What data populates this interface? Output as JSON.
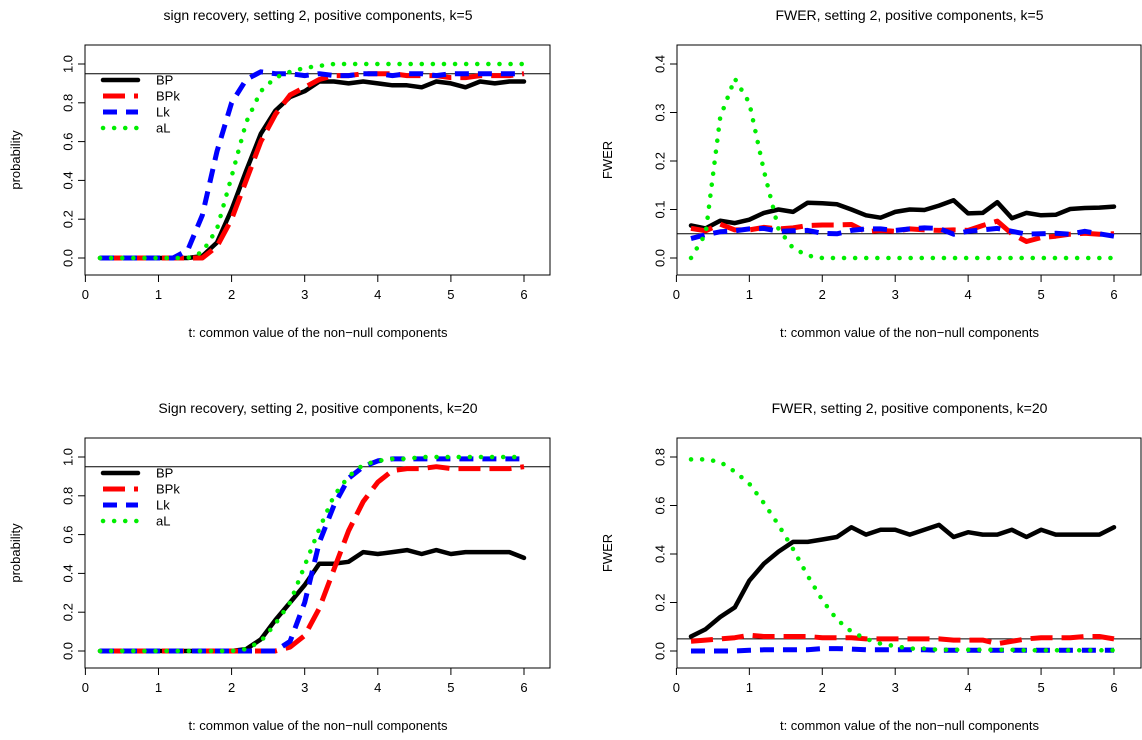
{
  "colors": {
    "BP": "#000000",
    "BPk": "#ff0000",
    "Lk": "#0000ff",
    "aL": "#00ee00"
  },
  "chart_data": [
    {
      "type": "line",
      "title": "sign recovery, setting 2, positive components, k=5",
      "xlabel": "t: common value of the non−null components",
      "ylabel": "probability",
      "xlim": [
        0.2,
        6
      ],
      "ylim": [
        0,
        1
      ],
      "xticks": [
        "0",
        "1",
        "2",
        "3",
        "4",
        "5",
        "6"
      ],
      "yticks": [
        "0.0",
        "0.2",
        "0.4",
        "0.6",
        "0.8",
        "1.0"
      ],
      "hline": 0.95,
      "legend": "top-left",
      "x": [
        0.2,
        0.4,
        0.6,
        0.8,
        1.0,
        1.2,
        1.4,
        1.6,
        1.8,
        2.0,
        2.2,
        2.4,
        2.6,
        2.8,
        3.0,
        3.2,
        3.4,
        3.6,
        3.8,
        4.0,
        4.2,
        4.4,
        4.6,
        4.8,
        5.0,
        5.2,
        5.4,
        5.6,
        5.8,
        6.0
      ],
      "series": [
        {
          "name": "BP",
          "values": [
            0,
            0,
            0,
            0,
            0,
            0,
            0,
            0.01,
            0.08,
            0.25,
            0.45,
            0.64,
            0.76,
            0.83,
            0.86,
            0.91,
            0.91,
            0.9,
            0.91,
            0.9,
            0.89,
            0.89,
            0.88,
            0.91,
            0.9,
            0.88,
            0.91,
            0.9,
            0.91,
            0.91
          ]
        },
        {
          "name": "BPk",
          "values": [
            0,
            0,
            0,
            0,
            0,
            0,
            0,
            0,
            0.06,
            0.2,
            0.4,
            0.6,
            0.74,
            0.84,
            0.88,
            0.92,
            0.94,
            0.94,
            0.95,
            0.95,
            0.95,
            0.94,
            0.94,
            0.94,
            0.93,
            0.93,
            0.94,
            0.94,
            0.94,
            0.95
          ]
        },
        {
          "name": "Lk",
          "values": [
            0,
            0,
            0,
            0,
            0,
            0,
            0.04,
            0.22,
            0.55,
            0.8,
            0.92,
            0.96,
            0.95,
            0.95,
            0.94,
            0.95,
            0.94,
            0.94,
            0.95,
            0.95,
            0.94,
            0.95,
            0.95,
            0.94,
            0.95,
            0.95,
            0.95,
            0.95,
            0.95,
            0.95
          ]
        },
        {
          "name": "aL",
          "values": [
            0,
            0,
            0,
            0,
            0,
            0,
            0,
            0.03,
            0.15,
            0.42,
            0.7,
            0.86,
            0.93,
            0.96,
            0.98,
            0.99,
            1.0,
            1.0,
            1.0,
            1.0,
            1.0,
            1.0,
            1.0,
            1.0,
            1.0,
            1.0,
            1.0,
            1.0,
            1.0,
            1.0
          ]
        }
      ]
    },
    {
      "type": "line",
      "title": "FWER, setting 2, positive components, k=5",
      "xlabel": "t: common value of the non−null components",
      "ylabel": "FWER",
      "xlim": [
        0.2,
        6
      ],
      "ylim": [
        0,
        0.4
      ],
      "xticks": [
        "0",
        "1",
        "2",
        "3",
        "4",
        "5",
        "6"
      ],
      "yticks": [
        "0.0",
        "0.1",
        "0.2",
        "0.3",
        "0.4"
      ],
      "hline": 0.05,
      "legend": "",
      "x": [
        0.2,
        0.4,
        0.6,
        0.8,
        1.0,
        1.2,
        1.4,
        1.6,
        1.8,
        2.0,
        2.2,
        2.4,
        2.6,
        2.8,
        3.0,
        3.2,
        3.4,
        3.6,
        3.8,
        4.0,
        4.2,
        4.4,
        4.6,
        4.8,
        5.0,
        5.2,
        5.4,
        5.6,
        5.8,
        6.0
      ],
      "series": [
        {
          "name": "BP",
          "values": [
            0.067,
            0.061,
            0.077,
            0.072,
            0.079,
            0.093,
            0.1,
            0.095,
            0.114,
            0.113,
            0.111,
            0.1,
            0.088,
            0.083,
            0.095,
            0.1,
            0.099,
            0.108,
            0.119,
            0.092,
            0.093,
            0.115,
            0.082,
            0.093,
            0.088,
            0.089,
            0.101,
            0.103,
            0.104,
            0.106
          ]
        },
        {
          "name": "BPk",
          "values": [
            0.061,
            0.056,
            0.07,
            0.058,
            0.058,
            0.063,
            0.06,
            0.062,
            0.067,
            0.068,
            0.068,
            0.069,
            0.054,
            0.057,
            0.055,
            0.06,
            0.058,
            0.057,
            0.058,
            0.057,
            0.067,
            0.076,
            0.05,
            0.034,
            0.042,
            0.045,
            0.049,
            0.051,
            0.049,
            0.05
          ]
        },
        {
          "name": "Lk",
          "values": [
            0.04,
            0.048,
            0.054,
            0.056,
            0.06,
            0.061,
            0.055,
            0.056,
            0.057,
            0.051,
            0.05,
            0.057,
            0.06,
            0.06,
            0.057,
            0.06,
            0.062,
            0.061,
            0.049,
            0.055,
            0.058,
            0.061,
            0.055,
            0.049,
            0.05,
            0.051,
            0.049,
            0.055,
            0.05,
            0.045
          ]
        },
        {
          "name": "aL",
          "values": [
            0.0,
            0.05,
            0.29,
            0.37,
            0.32,
            0.18,
            0.06,
            0.02,
            0.005,
            0,
            0,
            0,
            0,
            0,
            0,
            0,
            0,
            0,
            0,
            0,
            0,
            0,
            0,
            0,
            0,
            0,
            0,
            0,
            0,
            0
          ]
        }
      ]
    },
    {
      "type": "line",
      "title": "Sign recovery, setting 2, positive components, k=20",
      "xlabel": "t: common value of the non−null components",
      "ylabel": "probability",
      "xlim": [
        0.2,
        6
      ],
      "ylim": [
        0,
        1
      ],
      "xticks": [
        "0",
        "1",
        "2",
        "3",
        "4",
        "5",
        "6"
      ],
      "yticks": [
        "0.0",
        "0.2",
        "0.4",
        "0.6",
        "0.8",
        "1.0"
      ],
      "hline": 0.95,
      "legend": "top-left",
      "x": [
        0.2,
        0.4,
        0.6,
        0.8,
        1.0,
        1.2,
        1.4,
        1.6,
        1.8,
        2.0,
        2.2,
        2.4,
        2.6,
        2.8,
        3.0,
        3.2,
        3.4,
        3.6,
        3.8,
        4.0,
        4.2,
        4.4,
        4.6,
        4.8,
        5.0,
        5.2,
        5.4,
        5.6,
        5.8,
        6.0
      ],
      "series": [
        {
          "name": "BP",
          "values": [
            0,
            0,
            0,
            0,
            0,
            0,
            0,
            0,
            0,
            0,
            0.01,
            0.06,
            0.16,
            0.25,
            0.34,
            0.45,
            0.45,
            0.46,
            0.51,
            0.5,
            0.51,
            0.52,
            0.5,
            0.52,
            0.5,
            0.51,
            0.51,
            0.51,
            0.51,
            0.48
          ]
        },
        {
          "name": "BPk",
          "values": [
            0,
            0,
            0,
            0,
            0,
            0,
            0,
            0,
            0,
            0,
            0,
            0,
            0,
            0.02,
            0.08,
            0.22,
            0.42,
            0.62,
            0.77,
            0.87,
            0.93,
            0.94,
            0.94,
            0.95,
            0.94,
            0.94,
            0.94,
            0.94,
            0.94,
            0.95
          ]
        },
        {
          "name": "Lk",
          "values": [
            0,
            0,
            0,
            0,
            0,
            0,
            0,
            0,
            0,
            0,
            0,
            0,
            0,
            0.05,
            0.25,
            0.56,
            0.75,
            0.89,
            0.95,
            0.98,
            0.99,
            0.99,
            0.99,
            0.99,
            0.99,
            0.99,
            0.99,
            0.99,
            0.99,
            0.99
          ]
        },
        {
          "name": "aL",
          "values": [
            0,
            0,
            0,
            0,
            0,
            0,
            0,
            0,
            0,
            0,
            0.01,
            0.05,
            0.14,
            0.25,
            0.44,
            0.63,
            0.8,
            0.9,
            0.96,
            0.98,
            0.99,
            0.99,
            1.0,
            1.0,
            1.0,
            1.0,
            1.0,
            1.0,
            1.0,
            1.0
          ]
        }
      ]
    },
    {
      "type": "line",
      "title": "FWER, setting 2, positive components, k=20",
      "xlabel": "t: common value of the non−null components",
      "ylabel": "FWER",
      "xlim": [
        0.2,
        6
      ],
      "ylim": [
        0,
        0.85
      ],
      "xticks": [
        "0",
        "1",
        "2",
        "3",
        "4",
        "5",
        "6"
      ],
      "yticks": [
        "0.0",
        "0.2",
        "0.4",
        "0.6",
        "0.8"
      ],
      "hline": 0.05,
      "legend": "",
      "x": [
        0.2,
        0.4,
        0.6,
        0.8,
        1.0,
        1.2,
        1.4,
        1.6,
        1.8,
        2.0,
        2.2,
        2.4,
        2.6,
        2.8,
        3.0,
        3.2,
        3.4,
        3.6,
        3.8,
        4.0,
        4.2,
        4.4,
        4.6,
        4.8,
        5.0,
        5.2,
        5.4,
        5.6,
        5.8,
        6.0
      ],
      "series": [
        {
          "name": "BP",
          "values": [
            0.06,
            0.09,
            0.14,
            0.18,
            0.29,
            0.36,
            0.41,
            0.45,
            0.45,
            0.46,
            0.47,
            0.51,
            0.48,
            0.5,
            0.5,
            0.48,
            0.5,
            0.52,
            0.47,
            0.49,
            0.48,
            0.48,
            0.5,
            0.47,
            0.5,
            0.48,
            0.48,
            0.48,
            0.48,
            0.51
          ]
        },
        {
          "name": "BPk",
          "values": [
            0.04,
            0.045,
            0.05,
            0.055,
            0.065,
            0.06,
            0.06,
            0.06,
            0.06,
            0.055,
            0.055,
            0.055,
            0.05,
            0.05,
            0.05,
            0.05,
            0.05,
            0.05,
            0.045,
            0.045,
            0.045,
            0.03,
            0.04,
            0.05,
            0.055,
            0.055,
            0.055,
            0.06,
            0.06,
            0.05
          ]
        },
        {
          "name": "Lk",
          "values": [
            0,
            0,
            0,
            0,
            0.003,
            0.005,
            0.005,
            0.005,
            0.005,
            0.01,
            0.01,
            0.008,
            0.005,
            0.005,
            0.005,
            0.005,
            0.005,
            0.003,
            0.003,
            0.003,
            0.003,
            0.003,
            0.003,
            0.003,
            0.003,
            0.003,
            0.003,
            0.003,
            0.003,
            0.003
          ]
        },
        {
          "name": "aL",
          "values": [
            0.79,
            0.79,
            0.78,
            0.74,
            0.69,
            0.61,
            0.52,
            0.42,
            0.31,
            0.21,
            0.13,
            0.08,
            0.05,
            0.03,
            0.02,
            0.01,
            0.01,
            0.005,
            0.005,
            0.005,
            0.005,
            0.005,
            0.005,
            0.003,
            0.003,
            0.003,
            0.003,
            0.003,
            0.003,
            0.003
          ]
        }
      ]
    }
  ]
}
